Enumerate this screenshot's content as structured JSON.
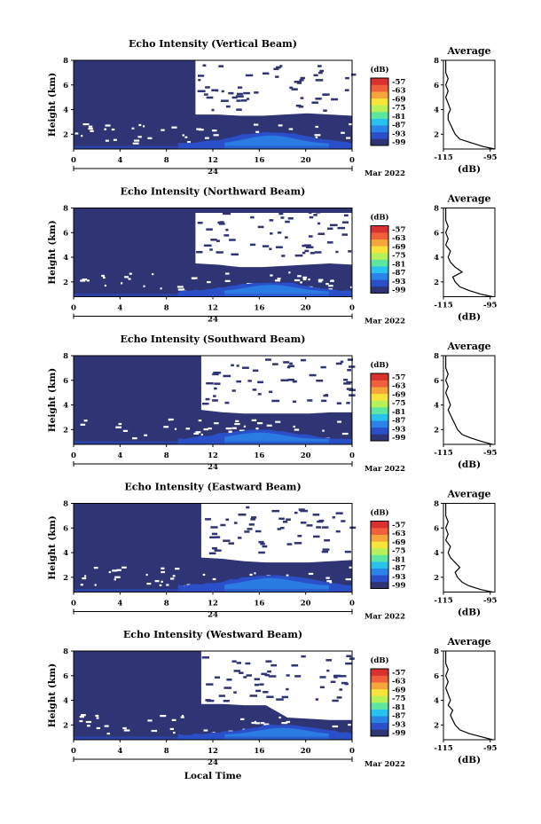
{
  "figure_xlabel": "Local Time",
  "colorbar": {
    "unit": "(dB)",
    "tick_labels": [
      "-57",
      "-63",
      "-69",
      "-75",
      "-81",
      "-87",
      "-93",
      "-99"
    ],
    "colors": [
      "#2f3475",
      "#2a4fc8",
      "#2a83e6",
      "#28c2ee",
      "#5de6a0",
      "#b8f05a",
      "#f7e33a",
      "#f6a53a",
      "#f0603a",
      "#d93030"
    ]
  },
  "chart_data": [
    {
      "type": "heatmap",
      "title": "Echo Intensity (Vertical Beam)",
      "ylabel": "Height (km)",
      "x_ticks": [
        "0",
        "4",
        "8",
        "12",
        "16",
        "20",
        "0"
      ],
      "y_ticks": [
        "2",
        "4",
        "6",
        "8"
      ],
      "date_mid": "24",
      "date_right": "Mar 2022",
      "xlim": [
        0,
        24
      ],
      "ylim": [
        0.8,
        8
      ],
      "clear_from_hour": 10.5,
      "clear_top": 8,
      "clear_bottom": [
        3.6,
        3.6,
        3.5,
        3.5,
        3.6,
        3.7,
        3.6,
        3.5
      ],
      "signal_peak": {
        "center_hour": 17,
        "peak_height": 2.2,
        "base_height": 1.2
      },
      "avg_profile": {
        "title": "Average",
        "xlabel": "(dB)",
        "x_ticks": [
          "-115",
          "-95"
        ],
        "y_ticks": [
          "2",
          "4",
          "6",
          "8"
        ],
        "xlim": [
          -115,
          -93
        ],
        "ylim": [
          0.8,
          8
        ],
        "height": [
          0.8,
          1.0,
          1.3,
          1.6,
          2.0,
          2.4,
          2.8,
          3.2,
          3.6,
          4.0,
          4.5,
          5.0,
          5.5,
          6.0,
          6.5,
          7.0,
          7.5,
          8.0
        ],
        "value": [
          -93,
          -98,
          -103,
          -108,
          -110,
          -111,
          -112,
          -113,
          -113,
          -112,
          -113,
          -114,
          -113,
          -114,
          -113,
          -114,
          -114,
          -114
        ]
      }
    },
    {
      "type": "heatmap",
      "title": "Echo Intensity (Northward Beam)",
      "ylabel": "Height (km)",
      "x_ticks": [
        "0",
        "4",
        "8",
        "12",
        "16",
        "20",
        "0"
      ],
      "y_ticks": [
        "2",
        "4",
        "6",
        "8"
      ],
      "date_mid": "24",
      "date_right": "Mar 2022",
      "xlim": [
        0,
        24
      ],
      "ylim": [
        0.8,
        8
      ],
      "clear_from_hour": 10.5,
      "clear_top": 7.6,
      "clear_bottom": [
        3.5,
        3.4,
        3.2,
        3.2,
        3.3,
        3.4,
        3.5,
        3.4
      ],
      "signal_peak": {
        "center_hour": 17,
        "peak_height": 2.0,
        "base_height": 1.2
      },
      "avg_profile": {
        "title": "Average",
        "xlabel": "(dB)",
        "x_ticks": [
          "-115",
          "-95"
        ],
        "y_ticks": [
          "2",
          "4",
          "6",
          "8"
        ],
        "xlim": [
          -115,
          -93
        ],
        "ylim": [
          0.8,
          8
        ],
        "height": [
          0.8,
          1.0,
          1.3,
          1.6,
          2.0,
          2.4,
          2.8,
          3.2,
          3.6,
          4.0,
          4.5,
          5.0,
          5.5,
          6.0,
          6.5,
          7.0,
          7.5,
          8.0
        ],
        "value": [
          -94,
          -99,
          -104,
          -108,
          -110,
          -111,
          -107,
          -110,
          -112,
          -113,
          -112,
          -114,
          -113,
          -114,
          -113,
          -114,
          -114,
          -114
        ]
      }
    },
    {
      "type": "heatmap",
      "title": "Echo Intensity (Southward Beam)",
      "ylabel": "Height (km)",
      "x_ticks": [
        "0",
        "4",
        "8",
        "12",
        "16",
        "20",
        "0"
      ],
      "y_ticks": [
        "2",
        "4",
        "6",
        "8"
      ],
      "date_mid": "24",
      "date_right": "Mar 2022",
      "xlim": [
        0,
        24
      ],
      "ylim": [
        0.8,
        8
      ],
      "clear_from_hour": 11,
      "clear_top": 8,
      "clear_bottom": [
        3.6,
        3.4,
        3.3,
        3.3,
        3.3,
        3.3,
        3.4,
        3.4
      ],
      "signal_peak": {
        "center_hour": 16,
        "peak_height": 2.0,
        "base_height": 1.2
      },
      "avg_profile": {
        "title": "Average",
        "xlabel": "(dB)",
        "x_ticks": [
          "-115",
          "-95"
        ],
        "y_ticks": [
          "2",
          "4",
          "6",
          "8"
        ],
        "xlim": [
          -115,
          -93
        ],
        "ylim": [
          0.8,
          8
        ],
        "height": [
          0.8,
          1.0,
          1.3,
          1.6,
          2.0,
          2.4,
          2.8,
          3.2,
          3.6,
          4.0,
          4.5,
          5.0,
          5.5,
          6.0,
          6.5,
          7.0,
          7.5,
          8.0
        ],
        "value": [
          -94,
          -98,
          -103,
          -107,
          -109,
          -110,
          -111,
          -112,
          -113,
          -112,
          -113,
          -114,
          -113,
          -114,
          -113,
          -114,
          -114,
          -114
        ]
      }
    },
    {
      "type": "heatmap",
      "title": "Echo Intensity (Eastward Beam)",
      "ylabel": "Height (km)",
      "x_ticks": [
        "0",
        "4",
        "8",
        "12",
        "16",
        "20",
        "0"
      ],
      "y_ticks": [
        "2",
        "4",
        "6",
        "8"
      ],
      "date_mid": "24",
      "date_right": "Mar 2022",
      "xlim": [
        0,
        24
      ],
      "ylim": [
        0.8,
        8
      ],
      "clear_from_hour": 11,
      "clear_top": 8,
      "clear_bottom": [
        3.6,
        3.5,
        3.3,
        3.2,
        3.2,
        3.2,
        3.3,
        3.4
      ],
      "signal_peak": {
        "center_hour": 17,
        "peak_height": 2.2,
        "base_height": 1.3
      },
      "avg_profile": {
        "title": "Average",
        "xlabel": "(dB)",
        "x_ticks": [
          "-115",
          "-95"
        ],
        "y_ticks": [
          "2",
          "4",
          "6",
          "8"
        ],
        "xlim": [
          -115,
          -93
        ],
        "ylim": [
          0.8,
          8
        ],
        "height": [
          0.8,
          1.0,
          1.3,
          1.6,
          2.0,
          2.4,
          2.8,
          3.2,
          3.6,
          4.0,
          4.5,
          5.0,
          5.5,
          6.0,
          6.5,
          7.0,
          7.5,
          8.0
        ],
        "value": [
          -94,
          -99,
          -104,
          -107,
          -109,
          -110,
          -108,
          -110,
          -112,
          -113,
          -112,
          -114,
          -113,
          -114,
          -113,
          -114,
          -114,
          -114
        ]
      }
    },
    {
      "type": "heatmap",
      "title": "Echo Intensity (Westward Beam)",
      "ylabel": "Height (km)",
      "x_ticks": [
        "0",
        "4",
        "8",
        "12",
        "16",
        "20",
        "0"
      ],
      "y_ticks": [
        "2",
        "4",
        "6",
        "8"
      ],
      "date_mid": "24",
      "date_right": "Mar 2022",
      "xlim": [
        0,
        24
      ],
      "ylim": [
        0.8,
        8
      ],
      "clear_from_hour": 11,
      "clear_top": 8,
      "clear_bottom": [
        3.7,
        3.7,
        3.6,
        3.6,
        2.6,
        2.5,
        2.4,
        2.4
      ],
      "signal_peak": {
        "center_hour": 18,
        "peak_height": 2.0,
        "base_height": 1.2
      },
      "avg_profile": {
        "title": "Average",
        "xlabel": "(dB)",
        "x_ticks": [
          "-115",
          "-95"
        ],
        "y_ticks": [
          "2",
          "4",
          "6",
          "8"
        ],
        "xlim": [
          -115,
          -93
        ],
        "ylim": [
          0.8,
          8
        ],
        "height": [
          0.8,
          1.0,
          1.3,
          1.6,
          2.0,
          2.4,
          2.8,
          3.2,
          3.6,
          4.0,
          4.5,
          5.0,
          5.5,
          6.0,
          6.5,
          7.0,
          7.5,
          8.0
        ],
        "value": [
          -94,
          -98,
          -104,
          -108,
          -110,
          -111,
          -112,
          -111,
          -113,
          -112,
          -113,
          -114,
          -113,
          -114,
          -113,
          -114,
          -114,
          -114
        ]
      }
    }
  ]
}
